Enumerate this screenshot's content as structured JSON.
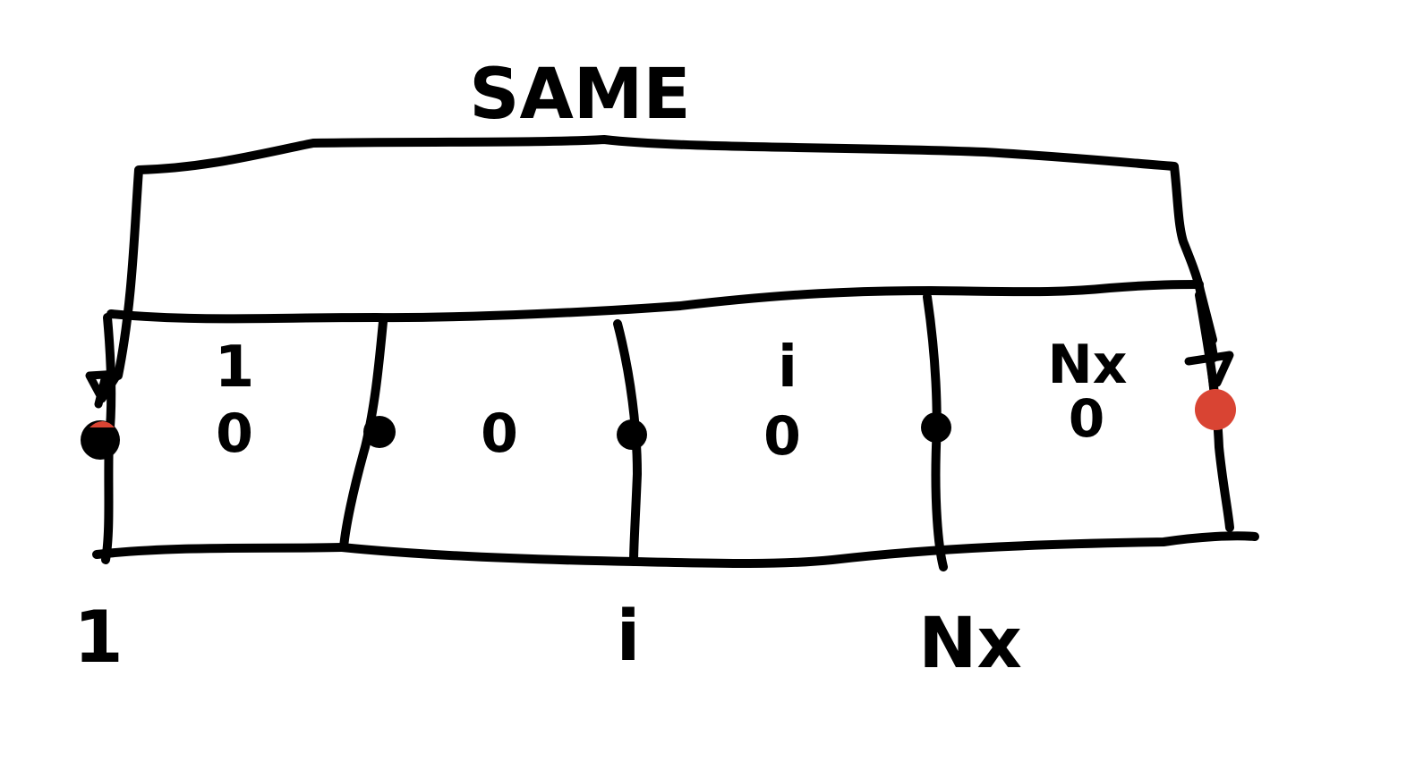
{
  "diagram": {
    "top_label": "SAME",
    "cell_labels": [
      "1",
      "i",
      "Nx"
    ],
    "cell_sublabel": "0",
    "node_labels": [
      "1",
      "i",
      "Nx"
    ],
    "colors": {
      "ink": "#000000",
      "highlight": "#d94433",
      "background": "#ffffff"
    }
  }
}
